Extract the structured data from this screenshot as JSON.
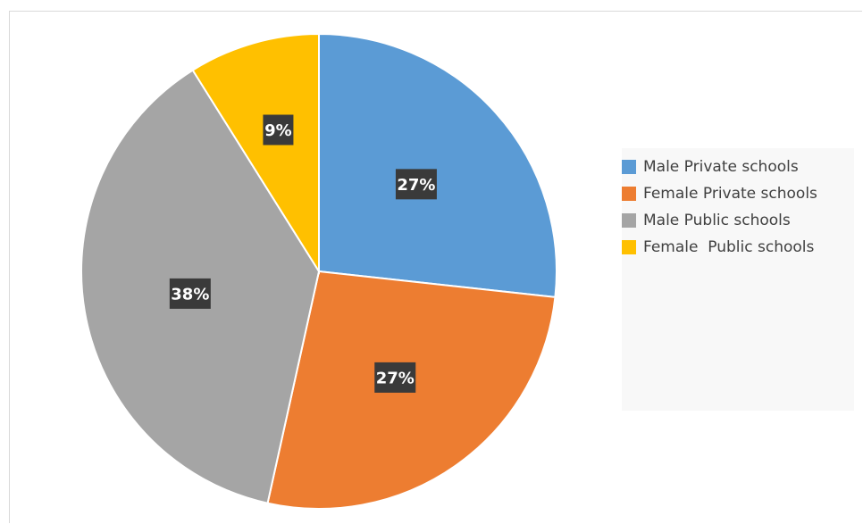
{
  "chart_data": {
    "type": "pie",
    "title": "",
    "categories": [
      "Male Private schools",
      "Female Private schools",
      "Male Public schools",
      "Female  Public schools"
    ],
    "values": [
      27,
      27,
      38,
      9
    ],
    "labels": [
      "27%",
      "27%",
      "38%",
      "9%"
    ],
    "colors": [
      "#5b9bd5",
      "#ed7d31",
      "#a5a5a5",
      "#ffc000"
    ],
    "legend_position": "right"
  }
}
